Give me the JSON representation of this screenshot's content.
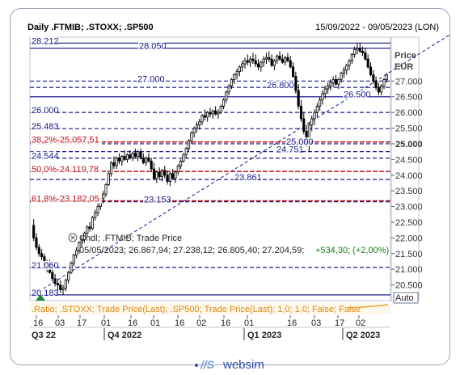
{
  "header": {
    "title": "Daily .FTMIB; .STOXX; .SP500",
    "date_range": "15/09/2022 - 09/05/2023 (LON)"
  },
  "brand": {
    "logo_text": "websim"
  },
  "chart_data": {
    "type": "candlestick",
    "y_axis": {
      "title_line1": "Price",
      "title_line2": "EUR",
      "range": [
        20000,
        28400
      ],
      "ticks": [
        {
          "value": 27000,
          "label": "27.000",
          "bold": false
        },
        {
          "value": 26500,
          "label": "26.500",
          "bold": false
        },
        {
          "value": 26000,
          "label": "26.000",
          "bold": false
        },
        {
          "value": 25500,
          "label": "25.500",
          "bold": false
        },
        {
          "value": 25000,
          "label": "25.000",
          "bold": true
        },
        {
          "value": 24500,
          "label": "24.500",
          "bold": false
        },
        {
          "value": 24000,
          "label": "24.000",
          "bold": false
        },
        {
          "value": 23500,
          "label": "23.500",
          "bold": false
        },
        {
          "value": 23000,
          "label": "23.000",
          "bold": false
        },
        {
          "value": 22500,
          "label": "22.500",
          "bold": false
        },
        {
          "value": 22000,
          "label": "22.000",
          "bold": false
        },
        {
          "value": 21500,
          "label": "21.500",
          "bold": false
        },
        {
          "value": 21000,
          "label": "21.000",
          "bold": false
        },
        {
          "value": 20500,
          "label": "20.500",
          "bold": false
        }
      ],
      "auto_label": "Auto"
    },
    "x_axis": {
      "day_ticks": [
        "16",
        "03",
        "17",
        "01",
        "16",
        "01",
        "16",
        "02",
        "16",
        "01",
        "16",
        "03",
        "17",
        "02"
      ],
      "period_labels": [
        "Q3 22",
        "Q4 2022",
        "Q1 2023",
        "Q2 2023"
      ]
    },
    "levels": [
      {
        "value": 28212,
        "label": "28.212",
        "style": "solid",
        "color": "#1a1a8c"
      },
      {
        "value": 28050,
        "label": "28.050",
        "style": "solid",
        "color": "#1a1a8c"
      },
      {
        "value": 27000,
        "label": "27.000",
        "style": "dashed",
        "color": "#1a1a8c"
      },
      {
        "value": 26800,
        "label": "26.800",
        "style": "dashed",
        "color": "#1a1a8c"
      },
      {
        "value": 26500,
        "label": "26.500",
        "style": "solid",
        "color": "#1a1a8c"
      },
      {
        "value": 26000,
        "label": "26.000",
        "style": "dashed",
        "color": "#1a1a8c"
      },
      {
        "value": 25483,
        "label": "25.483",
        "style": "dashed",
        "color": "#1a1a8c"
      },
      {
        "value": 25000,
        "label": "25.000",
        "style": "dashed",
        "color": "#1a1a8c"
      },
      {
        "value": 24751,
        "label": "24.751",
        "style": "dashed",
        "color": "#1a1a8c"
      },
      {
        "value": 24544,
        "label": "24.544",
        "style": "dashed",
        "color": "#1a1a8c"
      },
      {
        "value": 23861,
        "label": "23.861",
        "style": "dashed",
        "color": "#1a1a8c"
      },
      {
        "value": 23153,
        "label": "23.153",
        "style": "dashed",
        "color": "#1a1a8c"
      },
      {
        "value": 21060,
        "label": "21.060",
        "style": "dashed",
        "color": "#1a1a8c"
      },
      {
        "value": 20183,
        "label": "20.183",
        "style": "solid",
        "color": "#1a1a8c"
      }
    ],
    "fib_levels": [
      {
        "value": 25057.51,
        "label": "38,2%-25.057,51",
        "color": "#c0141c"
      },
      {
        "value": 24119.78,
        "label": "50,0%-24.119,78",
        "color": "#c0141c"
      },
      {
        "value": 23182.05,
        "label": "61,8%-23.182,05",
        "color": "#c0141c"
      }
    ],
    "trendline": {
      "from": {
        "index": 0,
        "value": 20183
      },
      "to": {
        "index": 156,
        "value": 28500
      }
    },
    "candles": [
      [
        22400,
        22600,
        21900,
        22000
      ],
      [
        22000,
        22150,
        21600,
        21700
      ],
      [
        21700,
        21800,
        21400,
        21500
      ],
      [
        21500,
        21650,
        21300,
        21400
      ],
      [
        21400,
        21500,
        21000,
        21100
      ],
      [
        21100,
        21300,
        20900,
        21200
      ],
      [
        21200,
        21300,
        20850,
        20900
      ],
      [
        20900,
        21050,
        20600,
        20700
      ],
      [
        20700,
        20850,
        20450,
        20550
      ],
      [
        20550,
        20700,
        20300,
        20500
      ],
      [
        20500,
        20650,
        20250,
        20350
      ],
      [
        20350,
        20500,
        20183,
        20400
      ],
      [
        20400,
        20700,
        20300,
        20650
      ],
      [
        20650,
        20950,
        20550,
        20900
      ],
      [
        20900,
        21250,
        20850,
        21200
      ],
      [
        21200,
        21500,
        21100,
        21450
      ],
      [
        21450,
        21700,
        21350,
        21600
      ],
      [
        21600,
        21900,
        21500,
        21850
      ],
      [
        21850,
        22050,
        21700,
        21950
      ],
      [
        21950,
        22200,
        21850,
        22150
      ],
      [
        22150,
        22400,
        22050,
        22350
      ],
      [
        22350,
        22500,
        22200,
        22300
      ],
      [
        22300,
        22700,
        22250,
        22650
      ],
      [
        22650,
        22900,
        22550,
        22800
      ],
      [
        22800,
        23100,
        22700,
        23000
      ],
      [
        23000,
        23300,
        22900,
        23250
      ],
      [
        23250,
        23500,
        23100,
        23400
      ],
      [
        23400,
        23750,
        23300,
        23700
      ],
      [
        23700,
        24100,
        23650,
        24050
      ],
      [
        24050,
        24450,
        23950,
        24400
      ],
      [
        24400,
        24600,
        24200,
        24300
      ],
      [
        24300,
        24600,
        24200,
        24550
      ],
      [
        24550,
        24700,
        24350,
        24450
      ],
      [
        24450,
        24650,
        24300,
        24600
      ],
      [
        24600,
        24800,
        24450,
        24500
      ],
      [
        24500,
        24700,
        24400,
        24650
      ],
      [
        24650,
        24800,
        24500,
        24550
      ],
      [
        24550,
        24750,
        24450,
        24700
      ],
      [
        24700,
        24850,
        24550,
        24600
      ],
      [
        24600,
        24800,
        24450,
        24750
      ],
      [
        24750,
        24850,
        24500,
        24550
      ],
      [
        24550,
        24700,
        24350,
        24400
      ],
      [
        24400,
        24600,
        24300,
        24550
      ],
      [
        24550,
        24700,
        24400,
        24450
      ],
      [
        24450,
        24550,
        24100,
        24200
      ],
      [
        24200,
        24400,
        23850,
        23900
      ],
      [
        23900,
        24150,
        23750,
        24100
      ],
      [
        24100,
        24250,
        23850,
        23950
      ],
      [
        23950,
        24200,
        23800,
        24150
      ],
      [
        24150,
        24300,
        23900,
        24000
      ],
      [
        24000,
        24150,
        23700,
        23800
      ],
      [
        23800,
        24100,
        23650,
        24050
      ],
      [
        24050,
        24200,
        23850,
        23900
      ],
      [
        23900,
        24150,
        23750,
        24100
      ],
      [
        24100,
        24350,
        24000,
        24300
      ],
      [
        24300,
        24500,
        24200,
        24450
      ],
      [
        24450,
        24700,
        24400,
        24650
      ],
      [
        24650,
        24900,
        24550,
        24850
      ],
      [
        24850,
        25150,
        24750,
        25100
      ],
      [
        25100,
        25400,
        25000,
        25350
      ],
      [
        25350,
        25550,
        25200,
        25500
      ],
      [
        25500,
        25700,
        25350,
        25600
      ],
      [
        25600,
        25800,
        25450,
        25700
      ],
      [
        25700,
        25950,
        25600,
        25900
      ],
      [
        25900,
        26100,
        25750,
        25850
      ],
      [
        25850,
        26050,
        25700,
        26000
      ],
      [
        26000,
        26150,
        25850,
        25950
      ],
      [
        25950,
        26100,
        25800,
        26050
      ],
      [
        26050,
        26200,
        25900,
        25950
      ],
      [
        25950,
        26100,
        25800,
        26000
      ],
      [
        26000,
        26250,
        25950,
        26200
      ],
      [
        26200,
        26450,
        26100,
        26400
      ],
      [
        26400,
        26700,
        26300,
        26650
      ],
      [
        26650,
        26900,
        26550,
        26850
      ],
      [
        26850,
        27100,
        26750,
        27050
      ],
      [
        27050,
        27250,
        26900,
        27200
      ],
      [
        27200,
        27400,
        27050,
        27300
      ],
      [
        27300,
        27500,
        27150,
        27450
      ],
      [
        27450,
        27650,
        27300,
        27550
      ],
      [
        27550,
        27750,
        27400,
        27650
      ],
      [
        27650,
        27850,
        27500,
        27600
      ],
      [
        27600,
        27800,
        27450,
        27700
      ],
      [
        27700,
        27900,
        27550,
        27650
      ],
      [
        27650,
        27850,
        27450,
        27550
      ],
      [
        27550,
        27700,
        27350,
        27450
      ],
      [
        27450,
        27650,
        27300,
        27600
      ],
      [
        27600,
        27800,
        27450,
        27700
      ],
      [
        27700,
        27900,
        27550,
        27750
      ],
      [
        27750,
        27950,
        27600,
        27700
      ],
      [
        27700,
        27850,
        27450,
        27500
      ],
      [
        27500,
        27700,
        27350,
        27650
      ],
      [
        27650,
        27850,
        27550,
        27800
      ],
      [
        27800,
        27950,
        27650,
        27700
      ],
      [
        27700,
        27850,
        27550,
        27600
      ],
      [
        27600,
        27800,
        27500,
        27750
      ],
      [
        27750,
        27900,
        27600,
        27650
      ],
      [
        27650,
        27800,
        27400,
        27450
      ],
      [
        27450,
        27600,
        27100,
        27150
      ],
      [
        27150,
        27300,
        26600,
        26700
      ],
      [
        26700,
        26900,
        26100,
        26200
      ],
      [
        26200,
        26400,
        25700,
        25800
      ],
      [
        25800,
        26000,
        25300,
        25400
      ],
      [
        25400,
        25600,
        24900,
        25000
      ],
      [
        25000,
        25700,
        24751,
        25600
      ],
      [
        25600,
        25900,
        25400,
        25800
      ],
      [
        25800,
        26100,
        25600,
        26000
      ],
      [
        26000,
        26300,
        25850,
        26200
      ],
      [
        26200,
        26500,
        26050,
        26400
      ],
      [
        26400,
        26700,
        26250,
        26600
      ],
      [
        26600,
        26850,
        26450,
        26750
      ],
      [
        26750,
        26950,
        26600,
        26850
      ],
      [
        26850,
        27050,
        26700,
        26950
      ],
      [
        26950,
        27150,
        26800,
        27050
      ],
      [
        27050,
        27200,
        26850,
        26900
      ],
      [
        26900,
        27100,
        26750,
        27050
      ],
      [
        27050,
        27300,
        26950,
        27250
      ],
      [
        27250,
        27450,
        27100,
        27350
      ],
      [
        27350,
        27550,
        27200,
        27500
      ],
      [
        27500,
        27700,
        27350,
        27650
      ],
      [
        27650,
        27900,
        27550,
        27850
      ],
      [
        27850,
        28100,
        27750,
        28000
      ],
      [
        28000,
        28200,
        27850,
        28050
      ],
      [
        28050,
        28212,
        27900,
        27950
      ],
      [
        27950,
        28100,
        27800,
        27900
      ],
      [
        27900,
        28050,
        27650,
        27700
      ],
      [
        27700,
        27850,
        27400,
        27450
      ],
      [
        27450,
        27600,
        27150,
        27200
      ],
      [
        27200,
        27350,
        26900,
        27000
      ],
      [
        27000,
        27150,
        26700,
        26800
      ],
      [
        26800,
        26950,
        26550,
        26650
      ],
      [
        26650,
        26900,
        26550,
        26850
      ],
      [
        26850,
        27100,
        26750,
        27050
      ],
      [
        27050,
        27250,
        26950,
        27200
      ]
    ],
    "info_box": {
      "title": "Cndl; .FTMIB; Trade Price",
      "ohlc_line": "05/05/2023; 26.867,94; 27.238,12; 26.805,40; 27.204,59; ",
      "change": "+534,30; (+2,00%)",
      "change_color": "#1a7a1a"
    },
    "ratio_line": ".Ratio; .STOXX; Trade Price(Last); .SP500; Trade Price(Last);  1,0; 1,0; False; False"
  }
}
